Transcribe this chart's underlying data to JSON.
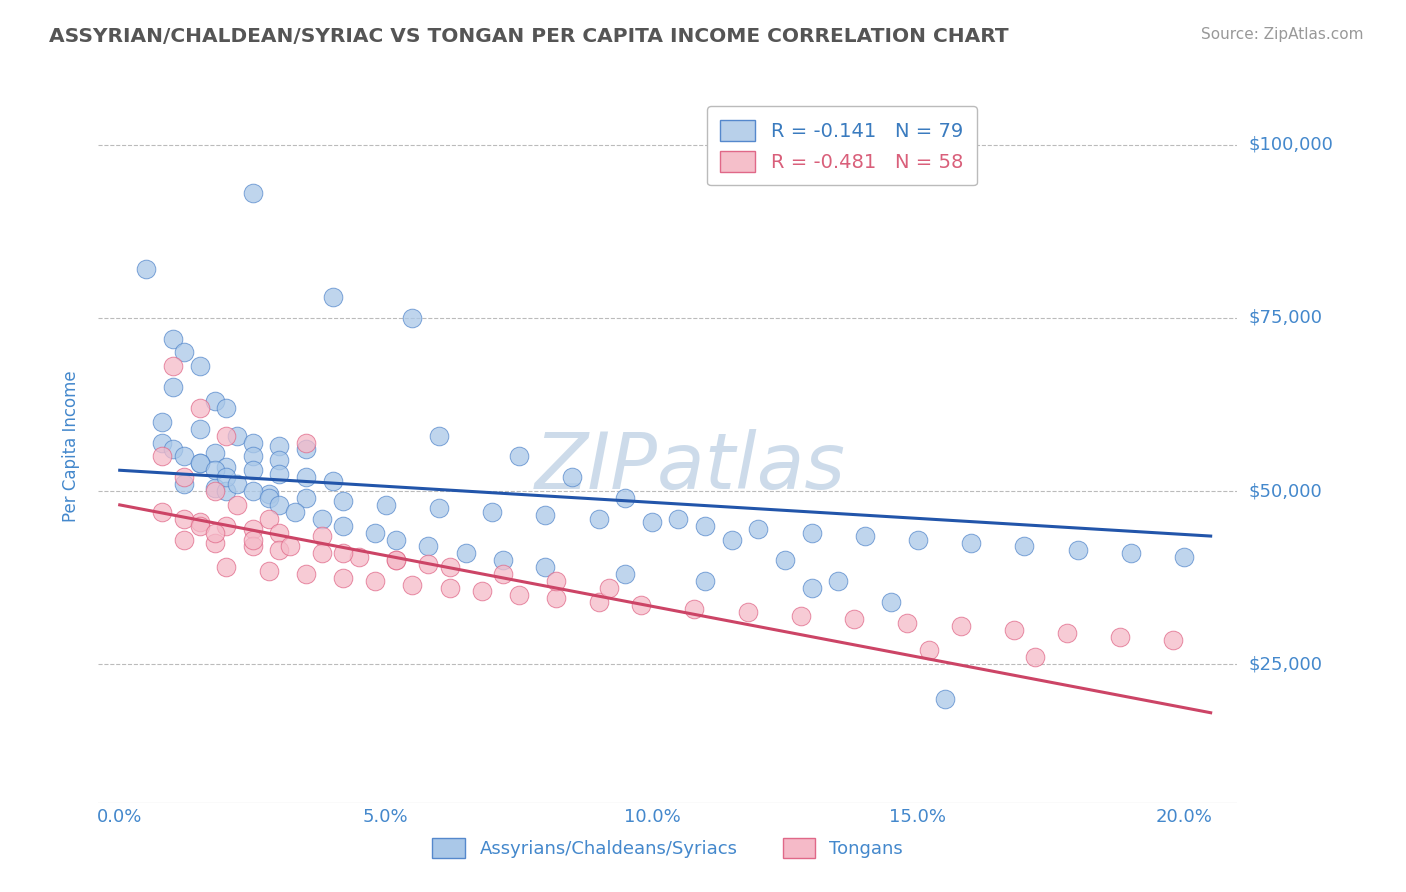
{
  "title": "ASSYRIAN/CHALDEAN/SYRIAC VS TONGAN PER CAPITA INCOME CORRELATION CHART",
  "source": "Source: ZipAtlas.com",
  "ylabel": "Per Capita Income",
  "x_ticks": [
    0.0,
    0.05,
    0.1,
    0.15,
    0.2
  ],
  "x_tick_labels": [
    "0.0%",
    "5.0%",
    "10.0%",
    "15.0%",
    "20.0%"
  ],
  "y_ticks": [
    25000,
    50000,
    75000,
    100000
  ],
  "y_tick_labels": [
    "$25,000",
    "$50,000",
    "$75,000",
    "$100,000"
  ],
  "xlim": [
    -0.004,
    0.21
  ],
  "ylim": [
    5000,
    108000
  ],
  "watermark": "ZIPatlas",
  "legend_entries": [
    {
      "label": "R = -0.141   N = 79",
      "color": "#b8d0ea",
      "text_color": "#3a7bbf"
    },
    {
      "label": "R = -0.481   N = 58",
      "color": "#f5bfca",
      "text_color": "#d95f7a"
    }
  ],
  "blue_scatter_x": [
    0.025,
    0.005,
    0.04,
    0.055,
    0.01,
    0.012,
    0.015,
    0.01,
    0.018,
    0.02,
    0.008,
    0.015,
    0.022,
    0.025,
    0.03,
    0.035,
    0.018,
    0.025,
    0.03,
    0.015,
    0.02,
    0.025,
    0.03,
    0.035,
    0.04,
    0.012,
    0.018,
    0.02,
    0.028,
    0.035,
    0.042,
    0.05,
    0.06,
    0.07,
    0.08,
    0.09,
    0.1,
    0.11,
    0.12,
    0.13,
    0.14,
    0.15,
    0.16,
    0.17,
    0.18,
    0.19,
    0.2,
    0.008,
    0.01,
    0.012,
    0.015,
    0.018,
    0.02,
    0.022,
    0.025,
    0.028,
    0.03,
    0.033,
    0.038,
    0.042,
    0.048,
    0.052,
    0.058,
    0.065,
    0.072,
    0.08,
    0.095,
    0.11,
    0.13,
    0.06,
    0.075,
    0.085,
    0.095,
    0.105,
    0.115,
    0.125,
    0.135,
    0.145,
    0.155
  ],
  "blue_scatter_y": [
    93000,
    82000,
    78000,
    75000,
    72000,
    70000,
    68000,
    65000,
    63000,
    62000,
    60000,
    59000,
    58000,
    57000,
    56500,
    56000,
    55500,
    55000,
    54500,
    54000,
    53500,
    53000,
    52500,
    52000,
    51500,
    51000,
    50500,
    50000,
    49500,
    49000,
    48500,
    48000,
    47500,
    47000,
    46500,
    46000,
    45500,
    45000,
    44500,
    44000,
    43500,
    43000,
    42500,
    42000,
    41500,
    41000,
    40500,
    57000,
    56000,
    55000,
    54000,
    53000,
    52000,
    51000,
    50000,
    49000,
    48000,
    47000,
    46000,
    45000,
    44000,
    43000,
    42000,
    41000,
    40000,
    39000,
    38000,
    37000,
    36000,
    58000,
    55000,
    52000,
    49000,
    46000,
    43000,
    40000,
    37000,
    34000,
    20000
  ],
  "pink_scatter_x": [
    0.01,
    0.015,
    0.02,
    0.008,
    0.012,
    0.018,
    0.022,
    0.028,
    0.035,
    0.015,
    0.02,
    0.025,
    0.03,
    0.038,
    0.012,
    0.018,
    0.025,
    0.03,
    0.038,
    0.045,
    0.052,
    0.058,
    0.02,
    0.028,
    0.035,
    0.042,
    0.048,
    0.055,
    0.062,
    0.068,
    0.075,
    0.082,
    0.09,
    0.098,
    0.108,
    0.118,
    0.128,
    0.138,
    0.148,
    0.158,
    0.168,
    0.178,
    0.188,
    0.198,
    0.008,
    0.012,
    0.015,
    0.018,
    0.025,
    0.032,
    0.042,
    0.052,
    0.062,
    0.072,
    0.082,
    0.092,
    0.152,
    0.172
  ],
  "pink_scatter_y": [
    68000,
    62000,
    58000,
    55000,
    52000,
    50000,
    48000,
    46000,
    57000,
    45500,
    45000,
    44500,
    44000,
    43500,
    43000,
    42500,
    42000,
    41500,
    41000,
    40500,
    40000,
    39500,
    39000,
    38500,
    38000,
    37500,
    37000,
    36500,
    36000,
    35500,
    35000,
    34500,
    34000,
    33500,
    33000,
    32500,
    32000,
    31500,
    31000,
    30500,
    30000,
    29500,
    29000,
    28500,
    47000,
    46000,
    45000,
    44000,
    43000,
    42000,
    41000,
    40000,
    39000,
    38000,
    37000,
    36000,
    27000,
    26000
  ],
  "blue_line_x": [
    0.0,
    0.205
  ],
  "blue_line_y": [
    53000,
    43500
  ],
  "pink_line_x": [
    0.0,
    0.205
  ],
  "pink_line_y": [
    48000,
    18000
  ],
  "blue_dot_color": "#aac8e8",
  "blue_edge_color": "#5588cc",
  "pink_dot_color": "#f5bac8",
  "pink_edge_color": "#e06888",
  "blue_line_color": "#2255aa",
  "pink_line_color": "#cc4466",
  "grid_color": "#bbbbbb",
  "title_color": "#555555",
  "axis_label_color": "#4488cc",
  "watermark_color": "#c8d8e8",
  "legend_edge_color": "#bbbbbb",
  "source_color": "#999999",
  "bottom_x_tick_label_color": "#4488cc"
}
